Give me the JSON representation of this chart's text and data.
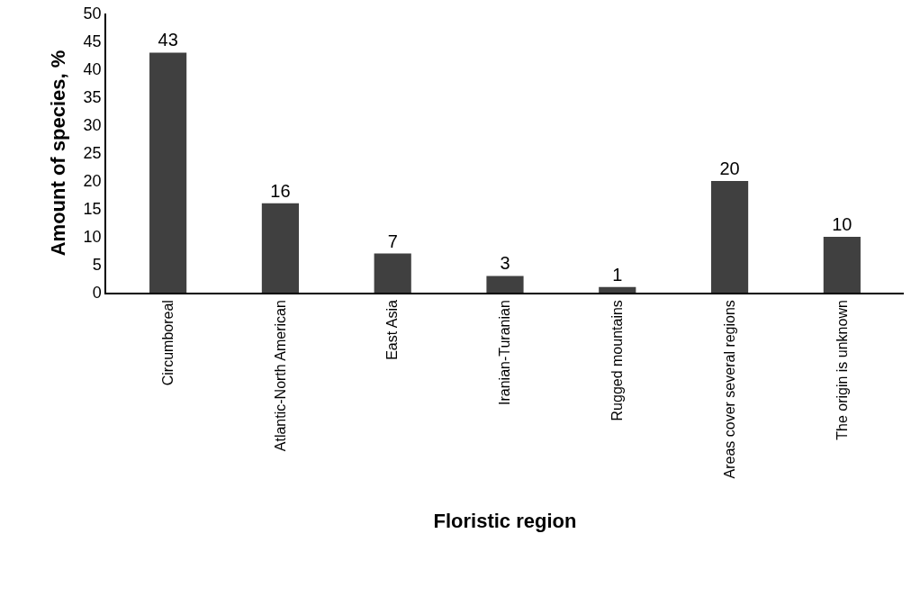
{
  "chart_data": {
    "type": "bar",
    "xlabel": "Floristic region",
    "ylabel": "Amount of species, %",
    "categories": [
      "Circumboreal",
      "Atlantic-North American",
      "East Asia",
      "Iranian-Turanian",
      "Rugged mountains",
      "Areas cover several regions",
      "The origin is unknown"
    ],
    "values": [
      43,
      16,
      7,
      3,
      1,
      20,
      10
    ],
    "color": "#404040",
    "ylim": [
      0,
      50
    ],
    "yticks": [
      0,
      5,
      10,
      15,
      20,
      25,
      30,
      35,
      40,
      45,
      50
    ],
    "grid": false,
    "data_labels": true
  }
}
